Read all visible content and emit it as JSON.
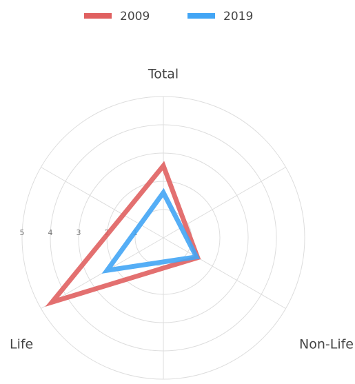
{
  "chart_data": {
    "type": "radar",
    "categories": [
      "Total",
      "Non-Life",
      "Life"
    ],
    "series": [
      {
        "name": "2009",
        "color": "#e06060",
        "values": [
          2.55,
          1.4,
          4.55
        ]
      },
      {
        "name": "2019",
        "color": "#42a5f5",
        "values": [
          1.6,
          1.35,
          2.3
        ]
      }
    ],
    "rlim": [
      0,
      5
    ],
    "rticks": [
      1,
      2,
      3,
      4,
      5
    ],
    "grid": true,
    "legend": "top"
  }
}
